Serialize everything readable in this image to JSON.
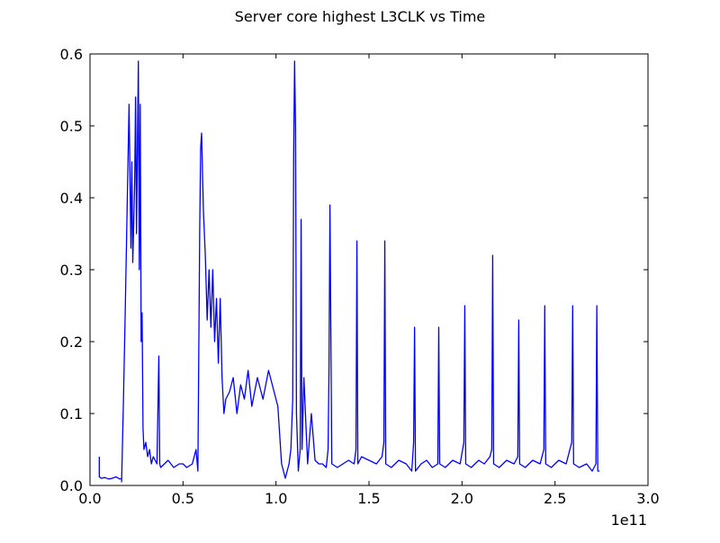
{
  "chart_data": {
    "type": "line",
    "title": "Server core highest L3CLK vs Time",
    "xlabel": "",
    "ylabel": "",
    "x_offset_label": "1e11",
    "xlim": [
      0.0,
      3.0
    ],
    "ylim": [
      0.0,
      0.6
    ],
    "x_ticks": [
      0.0,
      0.5,
      1.0,
      1.5,
      2.0,
      2.5,
      3.0
    ],
    "x_tick_labels": [
      "0.0",
      "0.5",
      "1.0",
      "1.5",
      "2.0",
      "2.5",
      "3.0"
    ],
    "y_ticks": [
      0.0,
      0.1,
      0.2,
      0.3,
      0.4,
      0.5,
      0.6
    ],
    "y_tick_labels": [
      "0.0",
      "0.1",
      "0.2",
      "0.3",
      "0.4",
      "0.5",
      "0.6"
    ],
    "grid": false,
    "line_color": "#0000ff",
    "series": [
      {
        "x": [
          0.05,
          0.05,
          0.06,
          0.08,
          0.1,
          0.12,
          0.14,
          0.16,
          0.17,
          0.17,
          0.18,
          0.19,
          0.2,
          0.21,
          0.22,
          0.225,
          0.23,
          0.24,
          0.245,
          0.25,
          0.26,
          0.265,
          0.27,
          0.275,
          0.28,
          0.285,
          0.29,
          0.3,
          0.31,
          0.32,
          0.33,
          0.34,
          0.36,
          0.37,
          0.375,
          0.38,
          0.4,
          0.42,
          0.45,
          0.48,
          0.5,
          0.52,
          0.55,
          0.57,
          0.58,
          0.59,
          0.595,
          0.6,
          0.61,
          0.62,
          0.63,
          0.64,
          0.65,
          0.66,
          0.67,
          0.68,
          0.69,
          0.7,
          0.71,
          0.72,
          0.73,
          0.75,
          0.77,
          0.79,
          0.81,
          0.83,
          0.85,
          0.87,
          0.9,
          0.93,
          0.96,
          0.99,
          1.01,
          1.03,
          1.05,
          1.07,
          1.08,
          1.09,
          1.095,
          1.1,
          1.105,
          1.11,
          1.12,
          1.13,
          1.135,
          1.14,
          1.15,
          1.17,
          1.19,
          1.21,
          1.23,
          1.25,
          1.27,
          1.28,
          1.285,
          1.29,
          1.3,
          1.33,
          1.36,
          1.39,
          1.42,
          1.43,
          1.435,
          1.44,
          1.46,
          1.5,
          1.54,
          1.57,
          1.58,
          1.585,
          1.59,
          1.62,
          1.66,
          1.7,
          1.73,
          1.74,
          1.745,
          1.75,
          1.78,
          1.81,
          1.84,
          1.87,
          1.875,
          1.88,
          1.91,
          1.95,
          1.99,
          2.01,
          2.015,
          2.02,
          2.05,
          2.09,
          2.12,
          2.15,
          2.16,
          2.165,
          2.17,
          2.2,
          2.24,
          2.28,
          2.3,
          2.305,
          2.31,
          2.34,
          2.38,
          2.42,
          2.44,
          2.445,
          2.45,
          2.48,
          2.52,
          2.56,
          2.59,
          2.595,
          2.6,
          2.63,
          2.67,
          2.7,
          2.72,
          2.725,
          2.73,
          2.74
        ],
        "y": [
          0.04,
          0.012,
          0.01,
          0.011,
          0.009,
          0.01,
          0.012,
          0.009,
          0.01,
          0.005,
          0.12,
          0.25,
          0.39,
          0.53,
          0.33,
          0.45,
          0.31,
          0.42,
          0.54,
          0.35,
          0.59,
          0.3,
          0.53,
          0.2,
          0.24,
          0.08,
          0.05,
          0.06,
          0.04,
          0.05,
          0.03,
          0.04,
          0.03,
          0.18,
          0.03,
          0.025,
          0.03,
          0.035,
          0.025,
          0.03,
          0.03,
          0.025,
          0.03,
          0.05,
          0.02,
          0.36,
          0.47,
          0.49,
          0.38,
          0.32,
          0.23,
          0.3,
          0.22,
          0.3,
          0.2,
          0.26,
          0.17,
          0.26,
          0.15,
          0.1,
          0.12,
          0.13,
          0.15,
          0.1,
          0.14,
          0.12,
          0.16,
          0.11,
          0.15,
          0.12,
          0.16,
          0.13,
          0.11,
          0.03,
          0.01,
          0.03,
          0.05,
          0.12,
          0.46,
          0.59,
          0.5,
          0.1,
          0.02,
          0.05,
          0.37,
          0.05,
          0.15,
          0.03,
          0.1,
          0.035,
          0.03,
          0.03,
          0.025,
          0.05,
          0.16,
          0.39,
          0.03,
          0.025,
          0.03,
          0.035,
          0.03,
          0.05,
          0.34,
          0.03,
          0.04,
          0.035,
          0.03,
          0.04,
          0.06,
          0.34,
          0.03,
          0.025,
          0.035,
          0.03,
          0.02,
          0.06,
          0.22,
          0.02,
          0.03,
          0.035,
          0.025,
          0.03,
          0.22,
          0.03,
          0.025,
          0.035,
          0.03,
          0.06,
          0.25,
          0.03,
          0.025,
          0.035,
          0.03,
          0.04,
          0.05,
          0.32,
          0.03,
          0.025,
          0.035,
          0.03,
          0.04,
          0.23,
          0.03,
          0.025,
          0.035,
          0.03,
          0.05,
          0.25,
          0.03,
          0.025,
          0.035,
          0.03,
          0.06,
          0.25,
          0.03,
          0.025,
          0.03,
          0.02,
          0.03,
          0.25,
          0.02,
          0.02
        ]
      }
    ]
  }
}
